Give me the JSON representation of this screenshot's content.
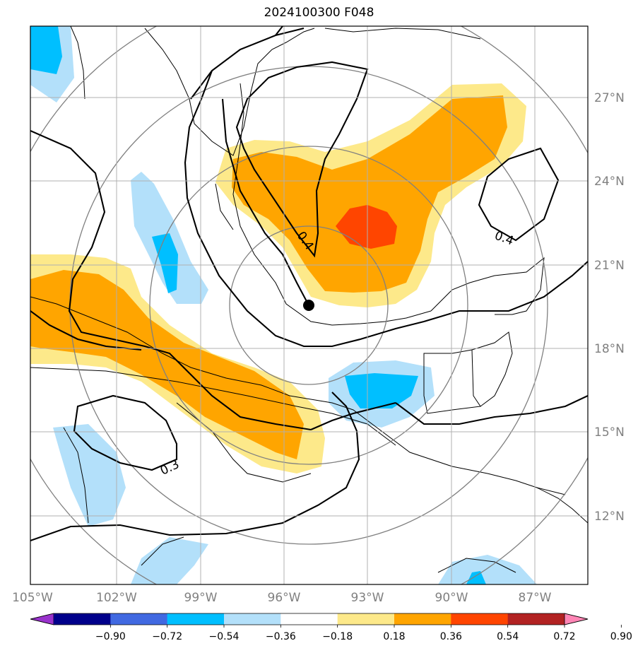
{
  "title": "2024100300 F048",
  "colors": {
    "pos1": "#fde98a",
    "pos2": "#ffa500",
    "pos3": "#ff4500",
    "neg1": "#b3e0fa",
    "neg2": "#00bfff",
    "coast": "#000000",
    "grid": "#b0b0b0",
    "circles": "#808080"
  },
  "map": {
    "lat_labels": [
      "27°N",
      "24°N",
      "21°N",
      "18°N",
      "15°N",
      "12°N"
    ],
    "lon_labels": [
      "105°W",
      "102°W",
      "99°W",
      "96°W",
      "93°W",
      "90°W",
      "87°W"
    ],
    "contour_labels": [
      "0.4",
      "0.4",
      "0.3"
    ],
    "marker": "storm-center-dot"
  },
  "colorbar": {
    "colors": [
      "#9932cc",
      "#00008b",
      "#4169e1",
      "#00bfff",
      "#b3e0fa",
      "#ffffff",
      "#fde98a",
      "#ffa500",
      "#ff4500",
      "#b22222",
      "#ff85b5"
    ],
    "labels": [
      "−0.90",
      "−0.72",
      "−0.54",
      "−0.36",
      "−0.18",
      "0.18",
      "0.36",
      "0.54",
      "0.72",
      "0.90"
    ]
  }
}
